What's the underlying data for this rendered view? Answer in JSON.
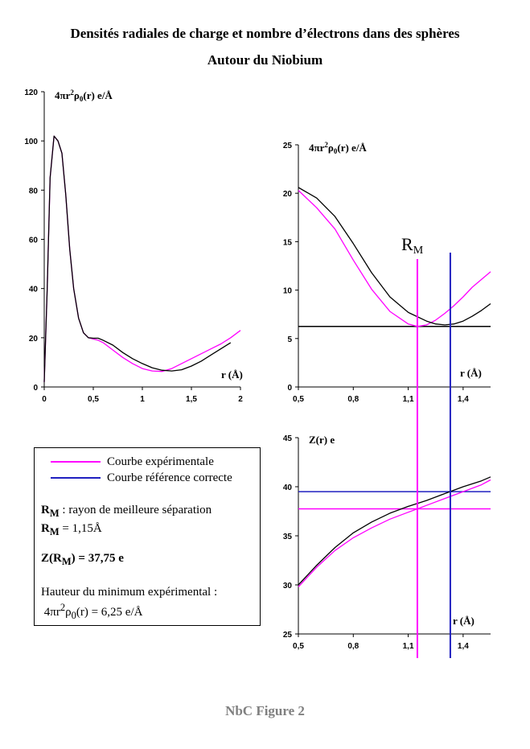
{
  "title_line1": "Densités radiales de charge et nombre d’électrons dans des sphères",
  "title_line2": "Autour du Niobium",
  "footer": "NbC Figure 2",
  "colors": {
    "experimental": "#ff00ff",
    "reference": "#2020c0",
    "black": "#000000"
  },
  "legend": {
    "experimental": "Courbe expérimentale",
    "reference": "Courbe référence correcte",
    "rm_label": "R",
    "rm_sub": "M",
    "rm_desc": " : rayon de meilleure séparation",
    "rm_value": " = 1,15Å",
    "z_prefix": "Z(",
    "z_value": ") = 37,75 e",
    "min_title": "Hauteur du minimum expérimental :",
    "min_value": " = 6,25 e/Å"
  },
  "chart_data": [
    {
      "type": "line",
      "ylabel": "4πr²ρ₀(r) e/Å",
      "xlabel": "r (Å)",
      "xlim": [
        0,
        2
      ],
      "ylim": [
        0,
        120
      ],
      "x_ticks": [
        "0",
        "0,5",
        "1",
        "1,5",
        "2"
      ],
      "y_ticks": [
        "0",
        "20",
        "40",
        "60",
        "80",
        "100",
        "120"
      ],
      "series": [
        {
          "color": "#ff00ff",
          "x": [
            0,
            0.03,
            0.06,
            0.1,
            0.14,
            0.18,
            0.22,
            0.26,
            0.3,
            0.35,
            0.4,
            0.45,
            0.5,
            0.55,
            0.6,
            0.7,
            0.8,
            0.9,
            1.0,
            1.1,
            1.2,
            1.3,
            1.4,
            1.5,
            1.6,
            1.7,
            1.8,
            1.9,
            2.0
          ],
          "y": [
            2,
            40,
            85,
            102,
            100,
            95,
            78,
            56,
            40,
            28,
            22,
            20,
            19.5,
            19,
            18,
            15,
            12,
            9.5,
            7.5,
            6.5,
            6.3,
            7.5,
            9.5,
            11.5,
            13.5,
            15.5,
            17.5,
            20,
            23
          ]
        },
        {
          "color": "#000000",
          "x": [
            0,
            0.03,
            0.06,
            0.1,
            0.14,
            0.18,
            0.22,
            0.26,
            0.3,
            0.35,
            0.4,
            0.45,
            0.5,
            0.55,
            0.6,
            0.7,
            0.8,
            0.9,
            1.0,
            1.1,
            1.2,
            1.3,
            1.4,
            1.5,
            1.6,
            1.7,
            1.8,
            1.9
          ],
          "y": [
            2,
            40,
            85,
            102,
            100,
            95,
            78,
            56,
            40,
            28,
            22,
            20,
            19.8,
            19.8,
            19,
            17,
            14,
            11.5,
            9.5,
            7.8,
            6.8,
            6.5,
            7,
            8.5,
            10.5,
            13,
            15.5,
            18
          ]
        }
      ]
    },
    {
      "type": "line",
      "ylabel": "4πr²ρ₀(r) e/Å",
      "xlabel": "r (Å)",
      "annotation": "R",
      "annotation_sub": "M",
      "xlim": [
        0.5,
        1.55
      ],
      "ylim": [
        0,
        25
      ],
      "x_ticks": [
        "0,5",
        "0,8",
        "1,1",
        "1,4"
      ],
      "y_ticks": [
        "0",
        "5",
        "10",
        "15",
        "20",
        "25"
      ],
      "vlines": [
        {
          "x": 1.15,
          "color": "#ff00ff"
        },
        {
          "x": 1.33,
          "color": "#2020c0"
        }
      ],
      "hlines": [
        {
          "y": 6.25,
          "color": "#000000"
        }
      ],
      "series": [
        {
          "color": "#ff00ff",
          "x": [
            0.5,
            0.6,
            0.7,
            0.8,
            0.9,
            1.0,
            1.1,
            1.15,
            1.2,
            1.25,
            1.3,
            1.35,
            1.4,
            1.45,
            1.5,
            1.55
          ],
          "y": [
            20.3,
            18.5,
            16.3,
            13.1,
            10.1,
            7.8,
            6.5,
            6.25,
            6.4,
            6.9,
            7.6,
            8.4,
            9.3,
            10.3,
            11.1,
            11.9
          ]
        },
        {
          "color": "#000000",
          "x": [
            0.5,
            0.6,
            0.7,
            0.8,
            0.9,
            1.0,
            1.1,
            1.2,
            1.25,
            1.3,
            1.35,
            1.4,
            1.45,
            1.5,
            1.55
          ],
          "y": [
            20.6,
            19.5,
            17.6,
            14.8,
            11.8,
            9.3,
            7.7,
            6.8,
            6.5,
            6.4,
            6.5,
            6.8,
            7.3,
            7.9,
            8.6
          ]
        }
      ]
    },
    {
      "type": "line",
      "ylabel": "Z(r) e",
      "xlabel": "r (Å)",
      "xlim": [
        0.5,
        1.55
      ],
      "ylim": [
        25,
        45
      ],
      "x_ticks": [
        "0,5",
        "0,8",
        "1,1",
        "1,4"
      ],
      "y_ticks": [
        "25",
        "30",
        "35",
        "40",
        "45"
      ],
      "vlines": [
        {
          "x": 1.15,
          "color": "#ff00ff"
        },
        {
          "x": 1.33,
          "color": "#2020c0"
        }
      ],
      "hlines": [
        {
          "y": 37.75,
          "color": "#ff00ff"
        },
        {
          "y": 39.5,
          "color": "#2020c0"
        }
      ],
      "series": [
        {
          "color": "#ff00ff",
          "x": [
            0.5,
            0.6,
            0.7,
            0.8,
            0.9,
            1.0,
            1.1,
            1.15,
            1.2,
            1.3,
            1.4,
            1.5,
            1.55
          ],
          "y": [
            29.8,
            31.8,
            33.5,
            34.8,
            35.8,
            36.7,
            37.4,
            37.75,
            38.1,
            38.8,
            39.5,
            40.2,
            40.7
          ]
        },
        {
          "color": "#000000",
          "x": [
            0.5,
            0.6,
            0.7,
            0.8,
            0.9,
            1.0,
            1.1,
            1.2,
            1.3,
            1.4,
            1.5,
            1.55
          ],
          "y": [
            30,
            32,
            33.8,
            35.3,
            36.4,
            37.3,
            38,
            38.6,
            39.3,
            40,
            40.6,
            41
          ]
        }
      ]
    }
  ]
}
